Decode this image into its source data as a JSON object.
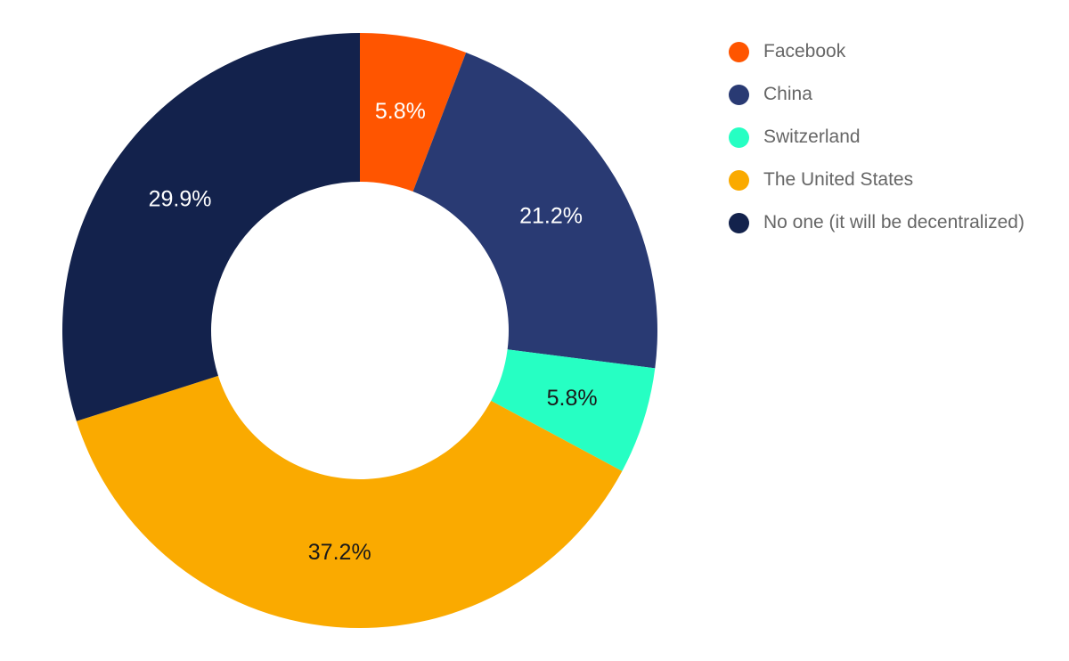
{
  "chart_data": {
    "type": "pie",
    "variant": "donut",
    "categories": [
      "Facebook",
      "China",
      "Switzerland",
      "The United States",
      "No one (it will be decentralized)"
    ],
    "values": [
      5.8,
      21.2,
      5.8,
      37.2,
      29.9
    ],
    "labels": [
      "5.8%",
      "21.2%",
      "5.8%",
      "37.2%",
      "29.9%"
    ],
    "colors": [
      "#ff5500",
      "#293a73",
      "#26ffc3",
      "#faaa00",
      "#13224c"
    ],
    "label_colors": [
      "#ffffff",
      "#ffffff",
      "#1a1a1a",
      "#1a1a1a",
      "#ffffff"
    ],
    "legend_position": "top-right",
    "start_angle": "12 o'clock",
    "direction": "clockwise"
  }
}
